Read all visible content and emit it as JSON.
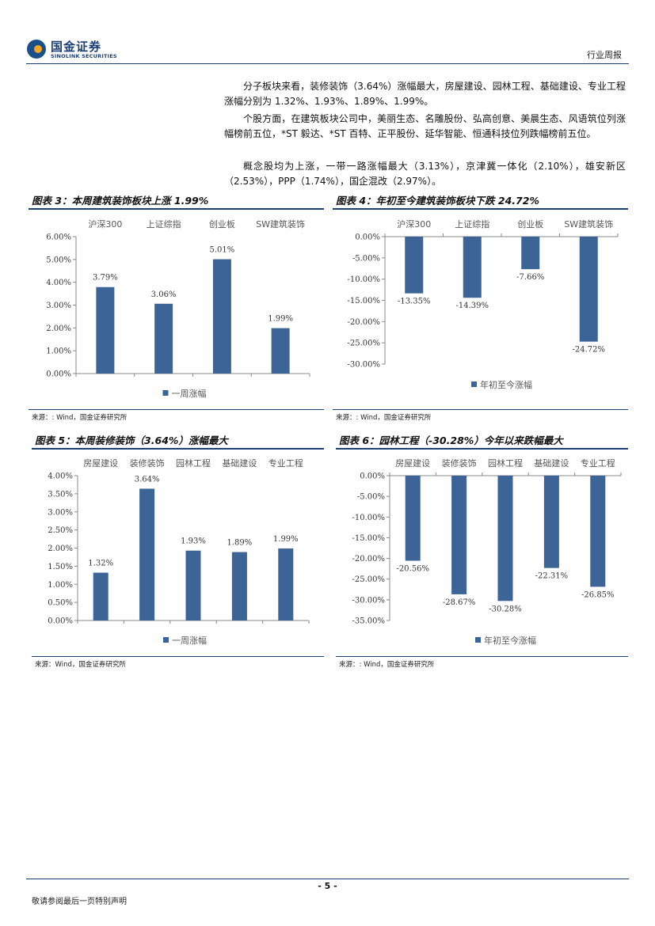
{
  "header": {
    "logo_cn": "国金证券",
    "logo_en": "SINOLINK SECURITIES",
    "doc_type": "行业周报"
  },
  "paragraphs": [
    "分子板块来看，装修装饰（3.64%）涨幅最大，房屋建设、园林工程、基础建设、专业工程涨幅分别为 1.32%、1.93%、1.89%、1.99%。",
    "个股方面，在建筑板块公司中，美丽生态、名雕股份、弘高创意、美晨生态、风语筑位列涨幅榜前五位，*ST 毅达、*ST 百特、正平股份、延华智能、恒通科技位列跌幅榜前五位。",
    "概念股均为上涨，一带一路涨幅最大（3.13%），京津冀一体化（2.10%），雄安新区（2.53%），PPP（1.74%），国企混改（2.97%）。"
  ],
  "figures": [
    {
      "title": "图表 3：本周建筑装饰板块上涨 1.99%",
      "source": "来源：: Wind，国金证券研究所"
    },
    {
      "title": "图表 4：年初至今建筑装饰板块下跌 24.72%",
      "source": "来源：: Wind，国金证券研究所"
    },
    {
      "title": "图表 5：本周装修装饰（3.64%）涨幅最大",
      "source": "来源：Wind，国金证券研究所"
    },
    {
      "title": "图表 6：园林工程（-30.28%）今年以来跌幅最大",
      "source": "来源：: Wind，国金证券研究所"
    }
  ],
  "footer": {
    "page": "- 5 -",
    "disclaimer": "敬请参阅最后一页特别声明"
  },
  "chart_data": [
    {
      "type": "bar",
      "categories": [
        "沪深300",
        "上证综指",
        "创业板",
        "SW建筑装饰"
      ],
      "series": [
        {
          "name": "一周涨幅",
          "values": [
            3.79,
            3.06,
            5.01,
            1.99
          ]
        }
      ],
      "value_labels": [
        "3.79%",
        "3.06%",
        "5.01%",
        "1.99%"
      ],
      "yticks": [
        "0.00%",
        "1.00%",
        "2.00%",
        "3.00%",
        "4.00%",
        "5.00%",
        "6.00%"
      ],
      "ylim": [
        0,
        6
      ],
      "ystep": 1,
      "category_position": "top",
      "legend_position": "bottom",
      "color": "#3c6497"
    },
    {
      "type": "bar",
      "categories": [
        "沪深300",
        "上证综指",
        "创业板",
        "SW建筑装饰"
      ],
      "series": [
        {
          "name": "年初至今涨幅",
          "values": [
            -13.35,
            -14.39,
            -7.66,
            -24.72
          ]
        }
      ],
      "value_labels": [
        "-13.35%",
        "-14.39%",
        "-7.66%",
        "-24.72%"
      ],
      "yticks": [
        "0.00%",
        "-5.00%",
        "-10.00%",
        "-15.00%",
        "-20.00%",
        "-25.00%",
        "-30.00%"
      ],
      "ylim": [
        -30,
        0
      ],
      "ystep": 5,
      "category_position": "top",
      "legend_position": "bottom",
      "color": "#3c6497"
    },
    {
      "type": "bar",
      "categories": [
        "房屋建设",
        "装修装饰",
        "园林工程",
        "基础建设",
        "专业工程"
      ],
      "series": [
        {
          "name": "一周涨幅",
          "values": [
            1.32,
            3.64,
            1.93,
            1.89,
            1.99
          ]
        }
      ],
      "value_labels": [
        "1.32%",
        "3.64%",
        "1.93%",
        "1.89%",
        "1.99%"
      ],
      "yticks": [
        "0.00%",
        "0.50%",
        "1.00%",
        "1.50%",
        "2.00%",
        "2.50%",
        "3.00%",
        "3.50%",
        "4.00%"
      ],
      "ylim": [
        0,
        4
      ],
      "ystep": 0.5,
      "category_position": "top",
      "legend_position": "bottom",
      "color": "#3c6497"
    },
    {
      "type": "bar",
      "categories": [
        "房屋建设",
        "装修装饰",
        "园林工程",
        "基础建设",
        "专业工程"
      ],
      "series": [
        {
          "name": "年初至今涨幅",
          "values": [
            -20.56,
            -28.67,
            -30.28,
            -22.31,
            -26.85
          ]
        }
      ],
      "value_labels": [
        "-20.56%",
        "-28.67%",
        "-30.28%",
        "-22.31%",
        "-26.85%"
      ],
      "yticks": [
        "0.00%",
        "-5.00%",
        "-10.00%",
        "-15.00%",
        "-20.00%",
        "-25.00%",
        "-30.00%",
        "-35.00%"
      ],
      "ylim": [
        -35,
        0
      ],
      "ystep": 5,
      "category_position": "top",
      "legend_position": "bottom",
      "color": "#3c6497"
    }
  ]
}
